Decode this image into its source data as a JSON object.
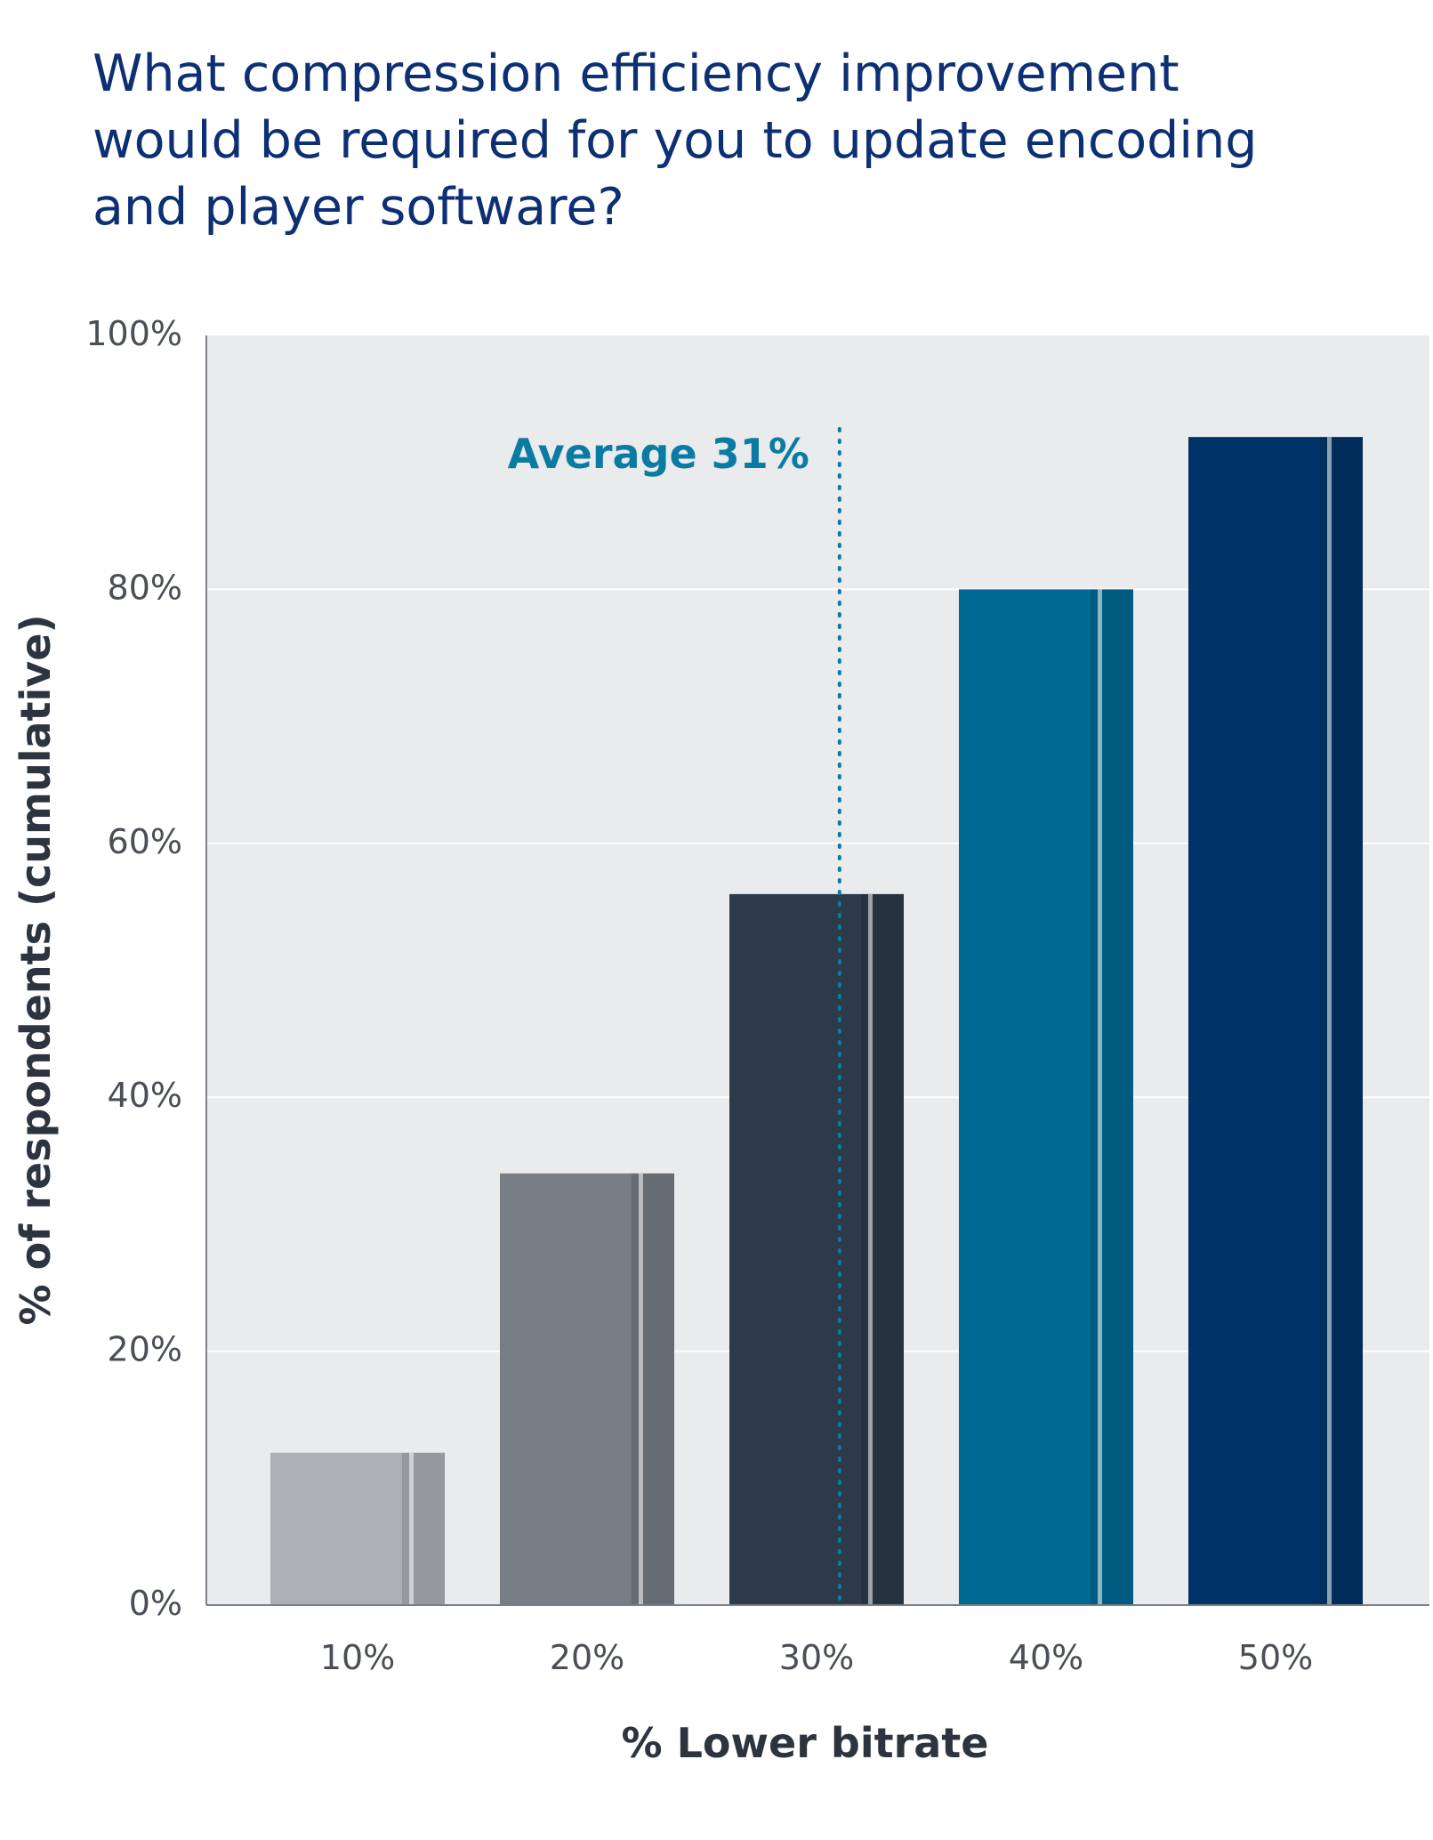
{
  "title_lines": [
    "What compression efficiency improvement",
    "would be required for you to update encoding",
    "and player software?"
  ],
  "chart_data": {
    "type": "bar",
    "title": "What compression efficiency improvement would be required for you to update encoding and player software?",
    "categories": [
      "10%",
      "20%",
      "30%",
      "40%",
      "50%"
    ],
    "values": [
      12,
      34,
      56,
      80,
      92
    ],
    "bar_colors": [
      "#adafb4",
      "#767d85",
      "#2c3a49",
      "#006993",
      "#003468"
    ],
    "xlabel": "% Lower bitrate",
    "ylabel": "% of respondents (cumulative)",
    "ylim": [
      0,
      100
    ],
    "yticks": [
      0,
      20,
      40,
      60,
      80,
      100
    ],
    "ytick_labels": [
      "0%",
      "20%",
      "40%",
      "60%",
      "80%",
      "100%"
    ],
    "grid": true,
    "annotation": {
      "label": "Average 31%",
      "x_value": 31,
      "color": "#0b7ba4"
    }
  }
}
